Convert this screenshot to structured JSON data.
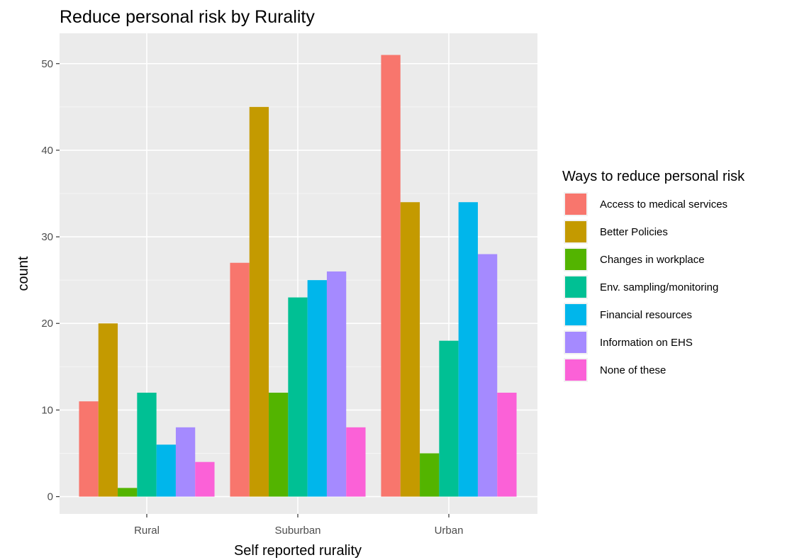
{
  "chart_data": {
    "type": "bar",
    "title": "Reduce personal risk by Rurality",
    "xlabel": "Self reported rurality",
    "ylabel": "count",
    "categories": [
      "Rural",
      "Suburban",
      "Urban"
    ],
    "ylim": [
      -2,
      53.5
    ],
    "yticks": [
      0,
      10,
      20,
      30,
      40,
      50
    ],
    "grid": true,
    "legend": {
      "title": "Ways to reduce personal risk",
      "position": "right"
    },
    "series": [
      {
        "name": "Access to medical services",
        "color": "#F8766D",
        "values": [
          11,
          27,
          51
        ]
      },
      {
        "name": "Better Policies",
        "color": "#C49A00",
        "values": [
          20,
          45,
          34
        ]
      },
      {
        "name": "Changes in workplace",
        "color": "#53B400",
        "values": [
          1,
          12,
          5
        ]
      },
      {
        "name": "Env. sampling/monitoring",
        "color": "#00C094",
        "values": [
          12,
          23,
          18
        ]
      },
      {
        "name": "Financial resources",
        "color": "#00B6EB",
        "values": [
          6,
          25,
          34
        ]
      },
      {
        "name": "Information on EHS",
        "color": "#A58AFF",
        "values": [
          8,
          26,
          28
        ]
      },
      {
        "name": "None of these",
        "color": "#FB61D7",
        "values": [
          4,
          8,
          12
        ]
      }
    ]
  }
}
